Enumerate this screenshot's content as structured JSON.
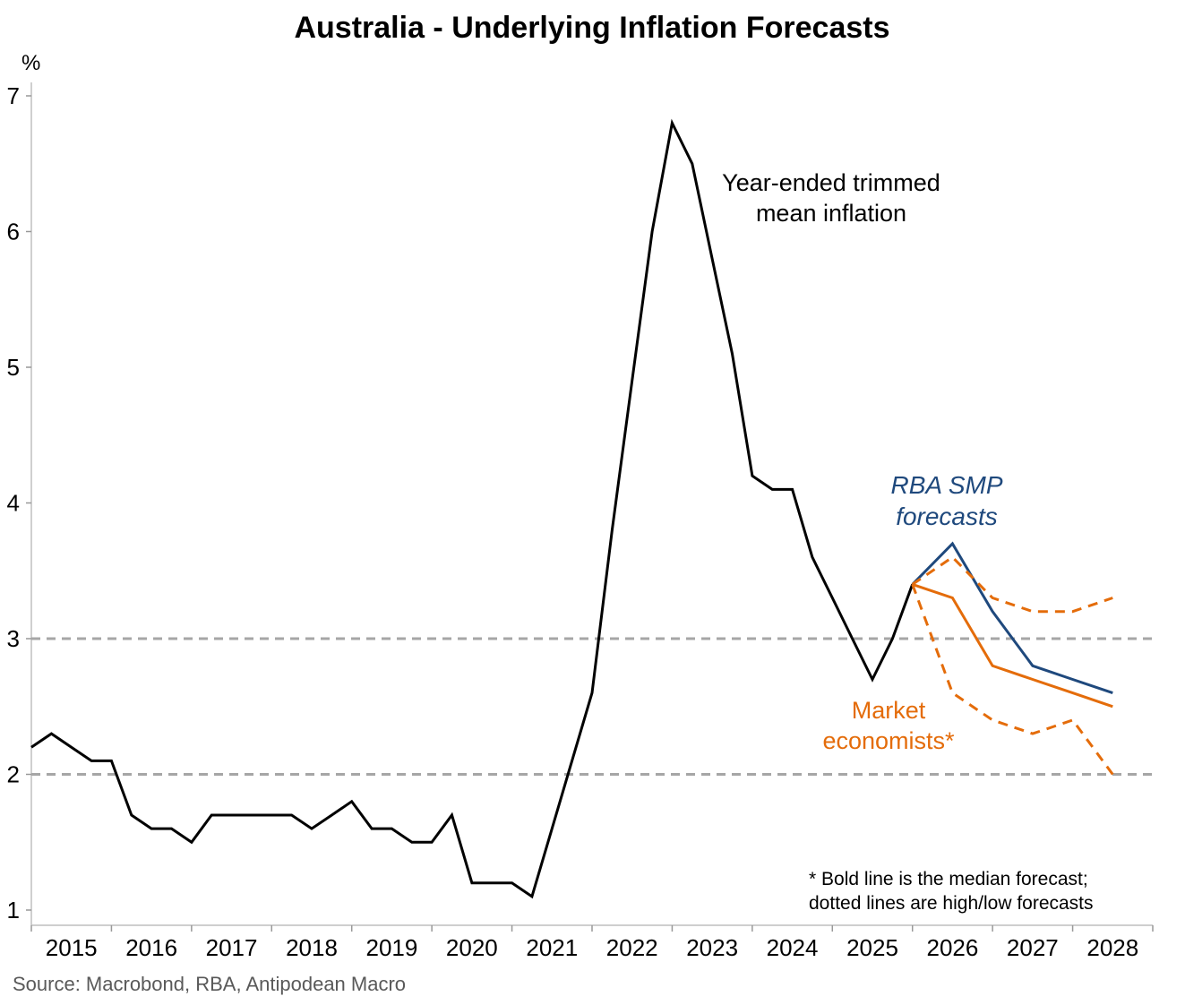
{
  "chart_data": {
    "type": "line",
    "title": "Australia - Underlying Inflation Forecasts",
    "ylabel": "%",
    "ylim": [
      1,
      7
    ],
    "yticks": [
      "1",
      "2",
      "3",
      "4",
      "5",
      "6",
      "7"
    ],
    "xlim": [
      2015,
      2029
    ],
    "xticks": [
      "2015",
      "2016",
      "2017",
      "2018",
      "2019",
      "2020",
      "2021",
      "2022",
      "2023",
      "2024",
      "2025",
      "2026",
      "2027",
      "2028"
    ],
    "reference_lines": [
      2,
      3
    ],
    "series": [
      {
        "name": "Year-ended trimmed mean inflation",
        "color": "#000000",
        "style": "solid",
        "start_year": 2015.0,
        "step": 0.25,
        "values": [
          2.2,
          2.3,
          2.2,
          2.1,
          2.1,
          1.7,
          1.6,
          1.6,
          1.5,
          1.7,
          1.7,
          1.7,
          1.7,
          1.7,
          1.6,
          1.7,
          1.8,
          1.6,
          1.6,
          1.5,
          1.5,
          1.7,
          1.2,
          1.2,
          1.2,
          1.1,
          1.6,
          2.1,
          2.6,
          3.8,
          4.9,
          6.0,
          6.8,
          6.5,
          5.8,
          5.1,
          4.2,
          4.1,
          4.1,
          3.6,
          3.3,
          3.0,
          2.7,
          3.0,
          3.4
        ]
      },
      {
        "name": "RBA SMP forecasts",
        "color": "#1f497d",
        "style": "solid",
        "start_year": 2026.0,
        "step": 0.5,
        "values": [
          3.4,
          3.7,
          3.2,
          2.8,
          2.7,
          2.6
        ]
      },
      {
        "name": "Market economists median",
        "color": "#e46c0a",
        "style": "solid",
        "start_year": 2026.0,
        "step": 0.5,
        "values": [
          3.4,
          3.3,
          2.8,
          2.7,
          2.6,
          2.5
        ]
      },
      {
        "name": "Market economists high",
        "color": "#e46c0a",
        "style": "dashed",
        "start_year": 2026.0,
        "step": 0.5,
        "values": [
          3.4,
          3.6,
          3.3,
          3.2,
          3.2,
          3.3
        ]
      },
      {
        "name": "Market economists low",
        "color": "#e46c0a",
        "style": "dashed",
        "start_year": 2026.0,
        "step": 0.5,
        "values": [
          3.4,
          2.6,
          2.4,
          2.3,
          2.4,
          2.0
        ]
      }
    ],
    "annotations": {
      "trimmed_mean": [
        "Year-ended trimmed",
        "mean inflation"
      ],
      "rba": [
        "RBA SMP",
        "forecasts"
      ],
      "market": [
        "Market",
        "economists*"
      ],
      "footnote": [
        "* Bold line is the median forecast;",
        "dotted lines are high/low forecasts"
      ]
    },
    "source": "Source: Macrobond, RBA, Antipodean Macro",
    "colors": {
      "grid_ref": "#a6a6a6",
      "axis": "#bfbfbf",
      "rba": "#1f497d",
      "market": "#e46c0a"
    }
  }
}
